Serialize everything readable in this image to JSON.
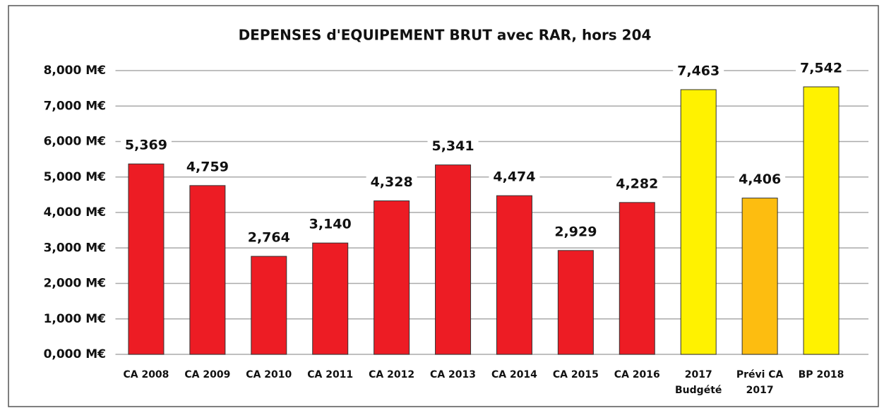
{
  "chart_data": {
    "type": "bar",
    "title": "DEPENSES d'EQUIPEMENT BRUT avec RAR, hors 204",
    "categories": [
      "CA 2008",
      "CA 2009",
      "CA 2010",
      "CA 2011",
      "CA 2012",
      "CA 2013",
      "CA 2014",
      "CA 2015",
      "CA 2016",
      "2017\nBudgété",
      "Prévi CA\n2017",
      "BP 2018"
    ],
    "values": [
      5.369,
      4.759,
      2.764,
      3.14,
      4.328,
      5.341,
      4.474,
      2.929,
      4.282,
      7.463,
      4.406,
      7.542
    ],
    "value_labels": [
      "5,369",
      "4,759",
      "2,764",
      "3,140",
      "4,328",
      "5,341",
      "4,474",
      "2,929",
      "4,282",
      "7,463",
      "4,406",
      "7,542"
    ],
    "colors": [
      "#ed1c24",
      "#ed1c24",
      "#ed1c24",
      "#ed1c24",
      "#ed1c24",
      "#ed1c24",
      "#ed1c24",
      "#ed1c24",
      "#ed1c24",
      "#fff200",
      "#fdbd10",
      "#fff200"
    ],
    "ylim": [
      0,
      8
    ],
    "yticks": [
      {
        "value": 0,
        "label": "0,000 M€"
      },
      {
        "value": 1,
        "label": "1,000 M€"
      },
      {
        "value": 2,
        "label": "2,000 M€"
      },
      {
        "value": 3,
        "label": "3,000 M€"
      },
      {
        "value": 4,
        "label": "4,000 M€"
      },
      {
        "value": 5,
        "label": "5,000 M€"
      },
      {
        "value": 6,
        "label": "6,000 M€"
      },
      {
        "value": 7,
        "label": "7,000 M€"
      },
      {
        "value": 8,
        "label": "8,000 M€"
      }
    ],
    "grid": true
  }
}
